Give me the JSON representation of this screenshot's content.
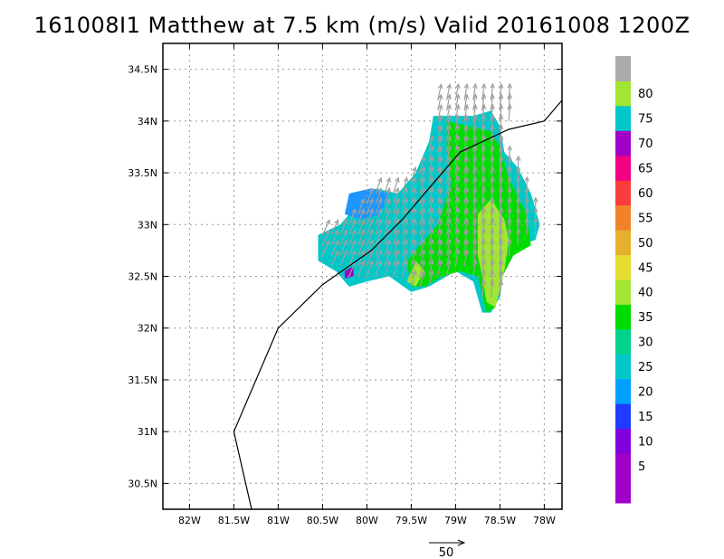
{
  "title": "161008I1 Matthew at 7.5 km (m/s) Valid 20161008 1200Z",
  "map": {
    "lon_range": [
      -82.3,
      -77.8
    ],
    "lat_range": [
      30.25,
      34.75
    ],
    "lon_ticks": [
      {
        "value": -82.0,
        "label": "82W"
      },
      {
        "value": -81.5,
        "label": "81.5W"
      },
      {
        "value": -81.0,
        "label": "81W"
      },
      {
        "value": -80.5,
        "label": "80.5W"
      },
      {
        "value": -80.0,
        "label": "80W"
      },
      {
        "value": -79.5,
        "label": "79.5W"
      },
      {
        "value": -79.0,
        "label": "79W"
      },
      {
        "value": -78.5,
        "label": "78.5W"
      },
      {
        "value": -78.0,
        "label": "78W"
      }
    ],
    "lat_ticks": [
      {
        "value": 30.5,
        "label": "30.5N"
      },
      {
        "value": 31.0,
        "label": "31N"
      },
      {
        "value": 31.5,
        "label": "31.5N"
      },
      {
        "value": 32.0,
        "label": "32N"
      },
      {
        "value": 32.5,
        "label": "32.5N"
      },
      {
        "value": 33.0,
        "label": "33N"
      },
      {
        "value": 33.5,
        "label": "33.5N"
      },
      {
        "value": 34.0,
        "label": "34N"
      },
      {
        "value": 34.5,
        "label": "34.5N"
      }
    ],
    "grid": "dotted",
    "track": [
      [
        -81.3,
        30.25
      ],
      [
        -81.5,
        31.0
      ],
      [
        -81.0,
        32.0
      ],
      [
        -80.5,
        32.42
      ],
      [
        -79.95,
        32.75
      ],
      [
        -79.6,
        33.05
      ],
      [
        -79.3,
        33.35
      ],
      [
        -78.95,
        33.7
      ],
      [
        -78.4,
        33.92
      ],
      [
        -78.0,
        34.0
      ],
      [
        -77.8,
        34.2
      ]
    ],
    "wind_field": {
      "units": "m/s",
      "patches": [
        {
          "value": 20,
          "color": "#00c8c8",
          "points": [
            [
              -80.55,
              32.9
            ],
            [
              -80.3,
              33.0
            ],
            [
              -80.15,
              33.15
            ],
            [
              -79.9,
              33.35
            ],
            [
              -79.65,
              33.3
            ],
            [
              -79.45,
              33.5
            ],
            [
              -79.3,
              33.8
            ],
            [
              -79.25,
              34.05
            ],
            [
              -79.05,
              34.05
            ],
            [
              -78.8,
              34.05
            ],
            [
              -78.6,
              34.1
            ],
            [
              -78.5,
              33.95
            ],
            [
              -78.45,
              33.7
            ],
            [
              -78.3,
              33.55
            ],
            [
              -78.15,
              33.3
            ],
            [
              -78.05,
              33.0
            ],
            [
              -78.1,
              32.85
            ],
            [
              -78.3,
              32.8
            ],
            [
              -78.45,
              32.6
            ],
            [
              -78.5,
              32.3
            ],
            [
              -78.6,
              32.15
            ],
            [
              -78.7,
              32.15
            ],
            [
              -78.8,
              32.45
            ],
            [
              -79.0,
              32.55
            ],
            [
              -79.3,
              32.4
            ],
            [
              -79.5,
              32.35
            ],
            [
              -79.75,
              32.5
            ],
            [
              -80.0,
              32.45
            ],
            [
              -80.2,
              32.4
            ],
            [
              -80.35,
              32.55
            ],
            [
              -80.55,
              32.65
            ]
          ]
        },
        {
          "value": 15,
          "color": "#1e96ff",
          "points": [
            [
              -80.25,
              33.1
            ],
            [
              -80.2,
              33.3
            ],
            [
              -79.95,
              33.35
            ],
            [
              -79.75,
              33.3
            ],
            [
              -79.85,
              33.1
            ],
            [
              -80.05,
              33.05
            ]
          ]
        },
        {
          "value": 30,
          "color": "#00dc00",
          "points": [
            [
              -79.55,
              32.65
            ],
            [
              -79.35,
              32.85
            ],
            [
              -79.2,
              33.0
            ],
            [
              -79.05,
              33.4
            ],
            [
              -79.1,
              33.75
            ],
            [
              -79.1,
              34.0
            ],
            [
              -78.85,
              33.95
            ],
            [
              -78.6,
              33.9
            ],
            [
              -78.5,
              33.75
            ],
            [
              -78.4,
              33.45
            ],
            [
              -78.2,
              33.1
            ],
            [
              -78.15,
              32.8
            ],
            [
              -78.35,
              32.7
            ],
            [
              -78.5,
              32.45
            ],
            [
              -78.55,
              32.2
            ],
            [
              -78.65,
              32.15
            ],
            [
              -78.75,
              32.5
            ],
            [
              -78.95,
              32.55
            ],
            [
              -79.15,
              32.5
            ],
            [
              -79.35,
              32.4
            ],
            [
              -79.5,
              32.4
            ]
          ]
        },
        {
          "value": 35,
          "color": "#a0e632",
          "points": [
            [
              -78.75,
              32.7
            ],
            [
              -78.75,
              33.1
            ],
            [
              -78.6,
              33.25
            ],
            [
              -78.45,
              33.05
            ],
            [
              -78.4,
              32.85
            ],
            [
              -78.45,
              32.55
            ],
            [
              -78.55,
              32.2
            ],
            [
              -78.65,
              32.25
            ],
            [
              -78.7,
              32.5
            ]
          ]
        },
        {
          "value": 35,
          "color": "#a0e632",
          "points": [
            [
              -79.55,
              32.45
            ],
            [
              -79.45,
              32.65
            ],
            [
              -79.35,
              32.55
            ],
            [
              -79.45,
              32.4
            ]
          ]
        },
        {
          "value": 5,
          "color": "#a000c8",
          "points": [
            [
              -80.25,
              32.55
            ],
            [
              -80.15,
              32.6
            ],
            [
              -80.15,
              32.5
            ],
            [
              -80.25,
              32.48
            ]
          ]
        }
      ]
    },
    "vector_legend_label": "50"
  },
  "colorbar": {
    "bins": [
      {
        "color": "#a000c8",
        "label": ""
      },
      {
        "color": "#a000c8",
        "label": "5"
      },
      {
        "color": "#8200dc",
        "label": "10"
      },
      {
        "color": "#1e3cff",
        "label": "15"
      },
      {
        "color": "#00a0ff",
        "label": "20"
      },
      {
        "color": "#00c8c8",
        "label": "25"
      },
      {
        "color": "#00d28c",
        "label": "30"
      },
      {
        "color": "#00dc00",
        "label": "35"
      },
      {
        "color": "#a0e632",
        "label": "40"
      },
      {
        "color": "#e6dc32",
        "label": "45"
      },
      {
        "color": "#e6af2d",
        "label": "50"
      },
      {
        "color": "#f08228",
        "label": "55"
      },
      {
        "color": "#fa3c3c",
        "label": "60"
      },
      {
        "color": "#f00082",
        "label": "65"
      },
      {
        "color": "#a000c8",
        "label": "70"
      },
      {
        "color": "#00c8c8",
        "label": "75"
      },
      {
        "color": "#a0e632",
        "label": "80"
      },
      {
        "color": "#aaaaaa",
        "label": ""
      }
    ]
  }
}
